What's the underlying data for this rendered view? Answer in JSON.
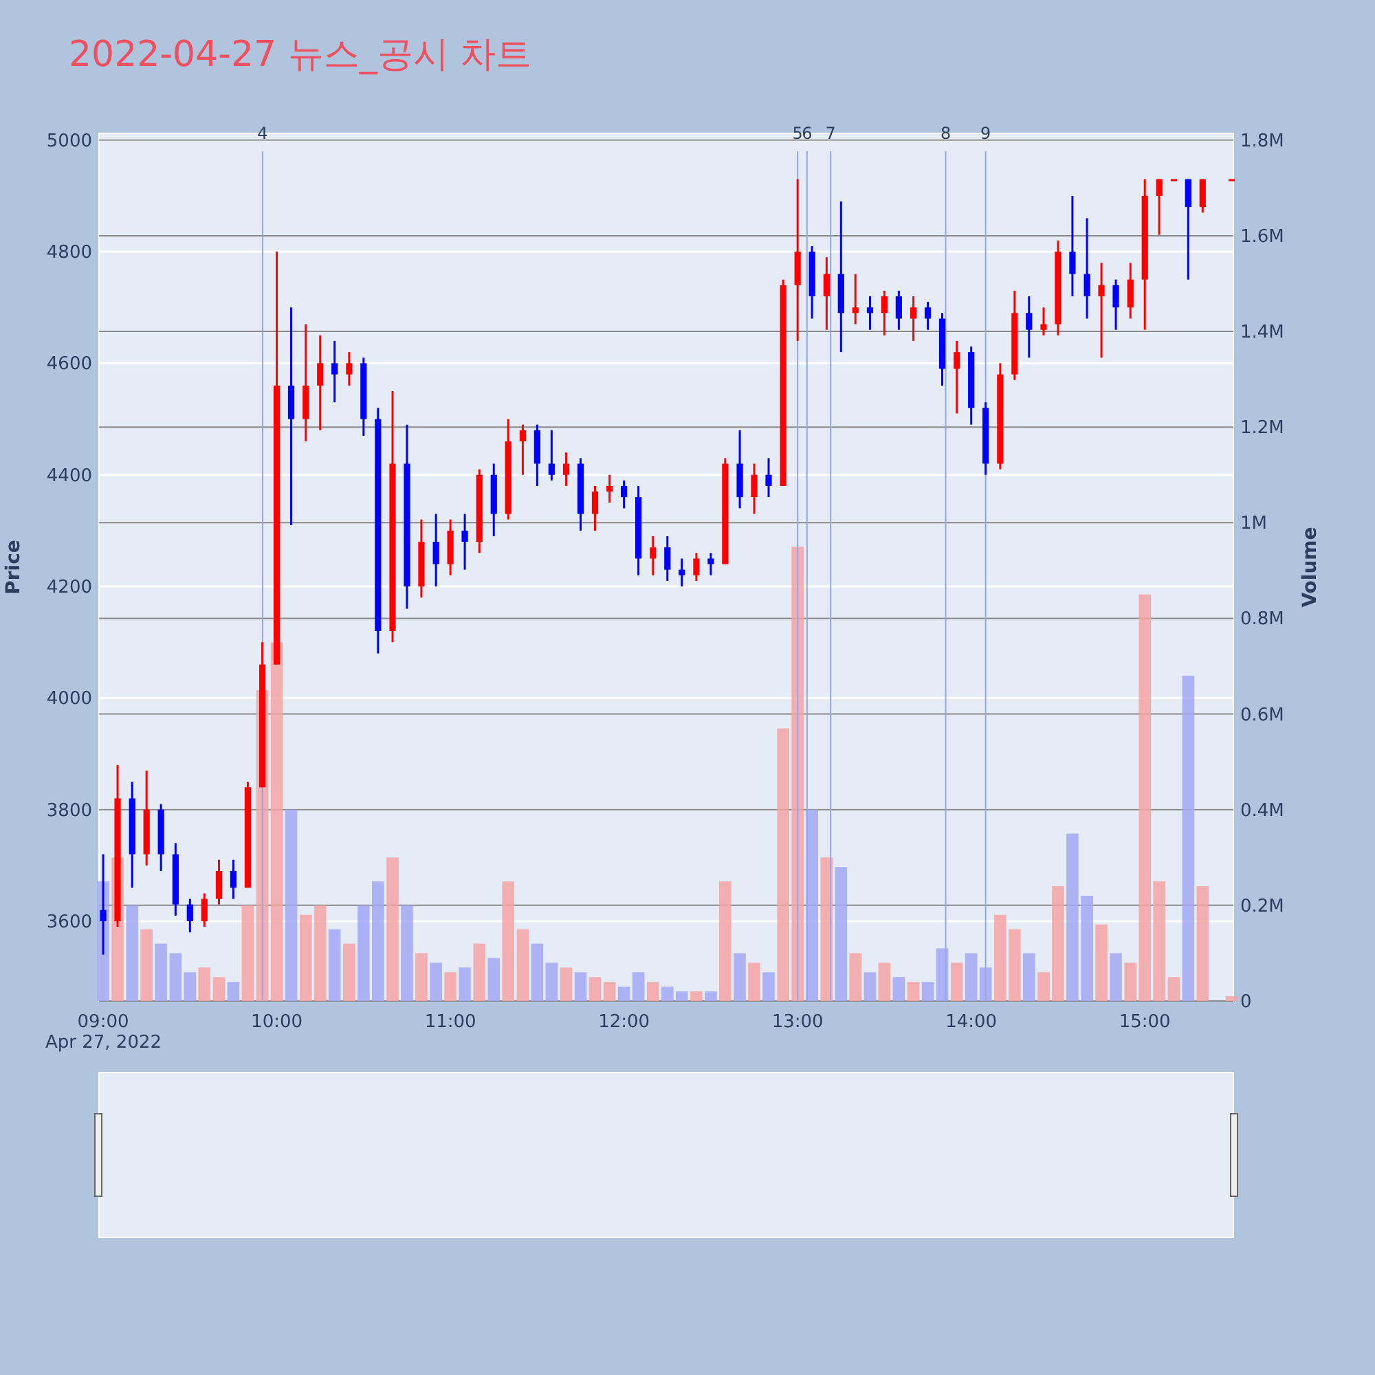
{
  "chart_data": {
    "type": "candlestick",
    "title": "2022-04-27 뉴스_공시 차트",
    "ylabel": "Price",
    "y2label": "Volume",
    "x": [
      9,
      9.083,
      9.167,
      9.25,
      9.333,
      9.417,
      9.5,
      9.583,
      9.667,
      9.75,
      9.833,
      9.917,
      10,
      10.083,
      10.167,
      10.25,
      10.333,
      10.417,
      10.5,
      10.583,
      10.667,
      10.75,
      10.833,
      10.917,
      11,
      11.083,
      11.167,
      11.25,
      11.333,
      11.417,
      11.5,
      11.583,
      11.667,
      11.75,
      11.833,
      11.917,
      12,
      12.083,
      12.167,
      12.25,
      12.333,
      12.417,
      12.5,
      12.583,
      12.667,
      12.75,
      12.833,
      12.917,
      13,
      13.083,
      13.167,
      13.25,
      13.333,
      13.417,
      13.5,
      13.583,
      13.667,
      13.75,
      13.833,
      13.917,
      14,
      14.083,
      14.167,
      14.25,
      14.333,
      14.417,
      14.5,
      14.583,
      14.667,
      14.75,
      14.833,
      14.917,
      15,
      15.083,
      15.167,
      15.25,
      15.333,
      15.5
    ],
    "ohlc": [
      [
        3620,
        3720,
        3540,
        3600
      ],
      [
        3600,
        3880,
        3590,
        3820
      ],
      [
        3820,
        3850,
        3660,
        3720
      ],
      [
        3720,
        3870,
        3700,
        3800
      ],
      [
        3800,
        3810,
        3690,
        3720
      ],
      [
        3720,
        3740,
        3610,
        3630
      ],
      [
        3630,
        3640,
        3580,
        3600
      ],
      [
        3600,
        3650,
        3590,
        3640
      ],
      [
        3640,
        3710,
        3630,
        3690
      ],
      [
        3690,
        3710,
        3640,
        3660
      ],
      [
        3660,
        3850,
        3660,
        3840
      ],
      [
        3840,
        4100,
        3840,
        4060
      ],
      [
        4060,
        4800,
        4060,
        4560
      ],
      [
        4560,
        4700,
        4310,
        4500
      ],
      [
        4500,
        4670,
        4460,
        4560
      ],
      [
        4560,
        4650,
        4480,
        4600
      ],
      [
        4600,
        4640,
        4530,
        4580
      ],
      [
        4580,
        4620,
        4560,
        4600
      ],
      [
        4600,
        4610,
        4470,
        4500
      ],
      [
        4500,
        4520,
        4080,
        4120
      ],
      [
        4120,
        4550,
        4100,
        4420
      ],
      [
        4420,
        4490,
        4160,
        4200
      ],
      [
        4200,
        4320,
        4180,
        4280
      ],
      [
        4280,
        4330,
        4200,
        4240
      ],
      [
        4240,
        4320,
        4220,
        4300
      ],
      [
        4300,
        4330,
        4230,
        4280
      ],
      [
        4280,
        4410,
        4260,
        4400
      ],
      [
        4400,
        4420,
        4290,
        4330
      ],
      [
        4330,
        4500,
        4320,
        4460
      ],
      [
        4460,
        4490,
        4400,
        4480
      ],
      [
        4480,
        4490,
        4380,
        4420
      ],
      [
        4420,
        4480,
        4390,
        4400
      ],
      [
        4400,
        4440,
        4380,
        4420
      ],
      [
        4420,
        4430,
        4300,
        4330
      ],
      [
        4330,
        4380,
        4300,
        4370
      ],
      [
        4370,
        4400,
        4350,
        4380
      ],
      [
        4380,
        4390,
        4340,
        4360
      ],
      [
        4360,
        4380,
        4220,
        4250
      ],
      [
        4250,
        4290,
        4220,
        4270
      ],
      [
        4270,
        4290,
        4210,
        4230
      ],
      [
        4230,
        4250,
        4200,
        4220
      ],
      [
        4220,
        4260,
        4210,
        4250
      ],
      [
        4250,
        4260,
        4220,
        4240
      ],
      [
        4240,
        4430,
        4240,
        4420
      ],
      [
        4420,
        4480,
        4340,
        4360
      ],
      [
        4360,
        4420,
        4330,
        4400
      ],
      [
        4400,
        4430,
        4360,
        4380
      ],
      [
        4380,
        4750,
        4380,
        4740
      ],
      [
        4740,
        4930,
        4640,
        4800
      ],
      [
        4800,
        4810,
        4680,
        4720
      ],
      [
        4720,
        4790,
        4660,
        4760
      ],
      [
        4760,
        4890,
        4620,
        4690
      ],
      [
        4690,
        4760,
        4670,
        4700
      ],
      [
        4700,
        4720,
        4660,
        4690
      ],
      [
        4690,
        4730,
        4650,
        4720
      ],
      [
        4720,
        4730,
        4660,
        4680
      ],
      [
        4680,
        4720,
        4640,
        4700
      ],
      [
        4700,
        4710,
        4660,
        4680
      ],
      [
        4680,
        4690,
        4560,
        4590
      ],
      [
        4590,
        4640,
        4510,
        4620
      ],
      [
        4620,
        4630,
        4490,
        4520
      ],
      [
        4520,
        4530,
        4400,
        4420
      ],
      [
        4420,
        4600,
        4410,
        4580
      ],
      [
        4580,
        4730,
        4570,
        4690
      ],
      [
        4690,
        4720,
        4610,
        4660
      ],
      [
        4660,
        4700,
        4650,
        4670
      ],
      [
        4670,
        4820,
        4650,
        4800
      ],
      [
        4800,
        4900,
        4720,
        4760
      ],
      [
        4760,
        4860,
        4680,
        4720
      ],
      [
        4720,
        4780,
        4610,
        4740
      ],
      [
        4740,
        4750,
        4660,
        4700
      ],
      [
        4700,
        4780,
        4680,
        4750
      ],
      [
        4750,
        4930,
        4660,
        4900
      ],
      [
        4900,
        4930,
        4830,
        4930
      ],
      [
        4930,
        4930,
        4930,
        4930
      ],
      [
        4930,
        4930,
        4750,
        4880
      ],
      [
        4880,
        4930,
        4870,
        4930
      ],
      [
        4930,
        4930,
        4930,
        4930
      ]
    ],
    "colors": [
      "#0000ff",
      "#ff0000",
      "#0000ff",
      "#ff0000",
      "#0000ff",
      "#0000ff",
      "#0000ff",
      "#ff0000",
      "#ff0000",
      "#0000ff",
      "#ff0000",
      "#ff0000",
      "#ff0000",
      "#0000ff",
      "#ff0000",
      "#ff0000",
      "#0000ff",
      "#ff0000",
      "#0000ff",
      "#0000ff",
      "#ff0000",
      "#0000ff",
      "#ff0000",
      "#0000ff",
      "#ff0000",
      "#0000ff",
      "#ff0000",
      "#0000ff",
      "#ff0000",
      "#ff0000",
      "#0000ff",
      "#0000ff",
      "#ff0000",
      "#0000ff",
      "#ff0000",
      "#ff0000",
      "#0000ff",
      "#0000ff",
      "#ff0000",
      "#0000ff",
      "#0000ff",
      "#ff0000",
      "#0000ff",
      "#ff0000",
      "#0000ff",
      "#ff0000",
      "#0000ff",
      "#ff0000",
      "#ff0000",
      "#0000ff",
      "#ff0000",
      "#0000ff",
      "#ff0000",
      "#0000ff",
      "#ff0000",
      "#0000ff",
      "#ff0000",
      "#0000ff",
      "#0000ff",
      "#ff0000",
      "#0000ff",
      "#0000ff",
      "#ff0000",
      "#ff0000",
      "#0000ff",
      "#ff0000",
      "#ff0000",
      "#0000ff",
      "#0000ff",
      "#ff0000",
      "#0000ff",
      "#ff0000",
      "#ff0000",
      "#ff0000",
      "#ff0000",
      "#0000ff",
      "#ff0000",
      "#ff0000"
    ],
    "series": [
      {
        "type": "bar",
        "axis": "y2",
        "values": [
          250000,
          300000,
          200000,
          150000,
          120000,
          100000,
          60000,
          70000,
          50000,
          40000,
          200000,
          650000,
          750000,
          400000,
          180000,
          200000,
          150000,
          120000,
          200000,
          250000,
          300000,
          200000,
          100000,
          80000,
          60000,
          70000,
          120000,
          90000,
          250000,
          150000,
          120000,
          80000,
          70000,
          60000,
          50000,
          40000,
          30000,
          60000,
          40000,
          30000,
          20000,
          20000,
          20000,
          250000,
          100000,
          80000,
          60000,
          570000,
          950000,
          400000,
          300000,
          280000,
          100000,
          60000,
          80000,
          50000,
          40000,
          40000,
          110000,
          80000,
          100000,
          70000,
          180000,
          150000,
          100000,
          60000,
          240000,
          350000,
          220000,
          160000,
          100000,
          80000,
          850000,
          250000,
          50000,
          680000,
          240000,
          10000
        ],
        "colors": [
          "#a3a8f5",
          "#f5a3a3",
          "#a3a8f5",
          "#f5a3a3",
          "#a3a8f5",
          "#a3a8f5",
          "#a3a8f5",
          "#f5a3a3",
          "#f5a3a3",
          "#a3a8f5",
          "#f5a3a3",
          "#f5a3a3",
          "#f5a3a3",
          "#a3a8f5",
          "#f5a3a3",
          "#f5a3a3",
          "#a3a8f5",
          "#f5a3a3",
          "#a3a8f5",
          "#a3a8f5",
          "#f5a3a3",
          "#a3a8f5",
          "#f5a3a3",
          "#a3a8f5",
          "#f5a3a3",
          "#a3a8f5",
          "#f5a3a3",
          "#a3a8f5",
          "#f5a3a3",
          "#f5a3a3",
          "#a3a8f5",
          "#a3a8f5",
          "#f5a3a3",
          "#a3a8f5",
          "#f5a3a3",
          "#f5a3a3",
          "#a3a8f5",
          "#a3a8f5",
          "#f5a3a3",
          "#a3a8f5",
          "#a3a8f5",
          "#f5a3a3",
          "#a3a8f5",
          "#f5a3a3",
          "#a3a8f5",
          "#f5a3a3",
          "#a3a8f5",
          "#f5a3a3",
          "#f5a3a3",
          "#a3a8f5",
          "#f5a3a3",
          "#a3a8f5",
          "#f5a3a3",
          "#a3a8f5",
          "#f5a3a3",
          "#a3a8f5",
          "#f5a3a3",
          "#a3a8f5",
          "#a3a8f5",
          "#f5a3a3",
          "#a3a8f5",
          "#a3a8f5",
          "#f5a3a3",
          "#f5a3a3",
          "#a3a8f5",
          "#f5a3a3",
          "#f5a3a3",
          "#a3a8f5",
          "#a3a8f5",
          "#f5a3a3",
          "#a3a8f5",
          "#f5a3a3",
          "#f5a3a3",
          "#f5a3a3",
          "#f5a3a3",
          "#a3a8f5",
          "#f5a3a3",
          "#f5a3a3"
        ]
      }
    ],
    "xlim": [
      8.976,
      15.51
    ],
    "xticks": [
      {
        "value": 9,
        "label": "09:00"
      },
      {
        "value": 10,
        "label": "10:00"
      },
      {
        "value": 11,
        "label": "11:00"
      },
      {
        "value": 12,
        "label": "12:00"
      },
      {
        "value": 13,
        "label": "13:00"
      },
      {
        "value": 14,
        "label": "14:00"
      },
      {
        "value": 15,
        "label": "15:00"
      }
    ],
    "ylim": [
      3457,
      5012
    ],
    "yticks": [
      3600,
      3800,
      4000,
      4200,
      4400,
      4600,
      4800,
      5000
    ],
    "y2lim": [
      0,
      1814000
    ],
    "y2ticks": [
      0,
      {
        "value": 200000,
        "label": "0.2M"
      },
      {
        "value": 400000,
        "label": "0.4M"
      },
      {
        "value": 600000,
        "label": "0.6M"
      },
      {
        "value": 800000,
        "label": "0.8M"
      },
      {
        "value": 1000000,
        "label": "1M"
      },
      {
        "value": 1200000,
        "label": "1.2M"
      },
      {
        "value": 1400000,
        "label": "1.4M"
      },
      {
        "value": 1600000,
        "label": "1.6M"
      },
      {
        "value": 1800000,
        "label": "1.8M"
      }
    ],
    "ref_lines": [
      {
        "axis": "x",
        "value": 9.918,
        "color": "#95a5f0"
      },
      {
        "axis": "x",
        "value": 13.0,
        "color": "#95a5f0"
      },
      {
        "axis": "x",
        "value": 13.054,
        "color": "#95a5f0"
      },
      {
        "axis": "x",
        "value": 13.19,
        "color": "#95a5f0"
      },
      {
        "axis": "x",
        "value": 13.853,
        "color": "#95a5f0"
      },
      {
        "axis": "x",
        "value": 14.083,
        "color": "#95a5f0"
      }
    ],
    "annotations": [
      "Apr 27, 2022",
      "4",
      "5",
      "6",
      "7",
      "8",
      "9"
    ],
    "grid": "y"
  }
}
